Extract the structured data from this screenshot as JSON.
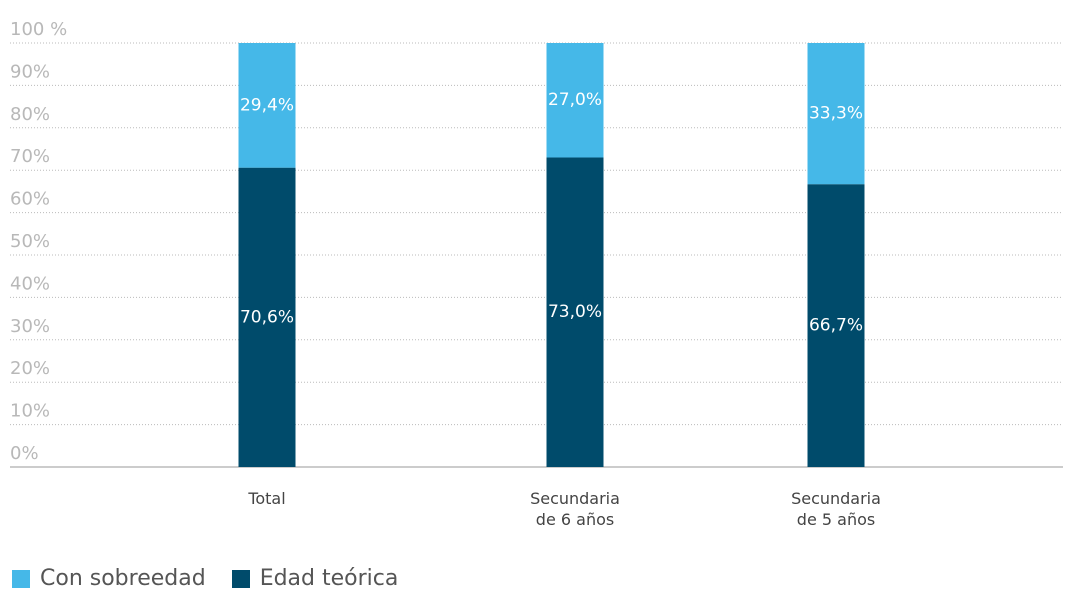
{
  "chart_data": {
    "type": "stacked_bar",
    "categories": [
      "Total",
      "Secundaria de 6 años",
      "Secundaria de 5 años"
    ],
    "series": [
      {
        "name": "Con sobreedad",
        "color": "#45b8e8",
        "values": [
          29.4,
          27.0,
          33.3
        ],
        "value_labels": [
          "29,4%",
          "27,0%",
          "33,3%"
        ]
      },
      {
        "name": "Edad teórica",
        "color": "#004b6b",
        "values": [
          70.6,
          73.0,
          66.7
        ],
        "value_labels": [
          "70,6%",
          "73,0%",
          "66,7%"
        ]
      }
    ],
    "ylim": [
      0,
      100
    ],
    "yticks": [
      {
        "value": 0,
        "label": "0%"
      },
      {
        "value": 10,
        "label": "10%"
      },
      {
        "value": 20,
        "label": "20%"
      },
      {
        "value": 30,
        "label": "30%"
      },
      {
        "value": 40,
        "label": "40%"
      },
      {
        "value": 50,
        "label": "50%"
      },
      {
        "value": 60,
        "label": "60%"
      },
      {
        "value": 70,
        "label": "70%"
      },
      {
        "value": 80,
        "label": "80%"
      },
      {
        "value": 90,
        "label": "90%"
      },
      {
        "value": 100,
        "label": "100 %"
      }
    ],
    "grid": true,
    "legend": "bottom-left"
  }
}
